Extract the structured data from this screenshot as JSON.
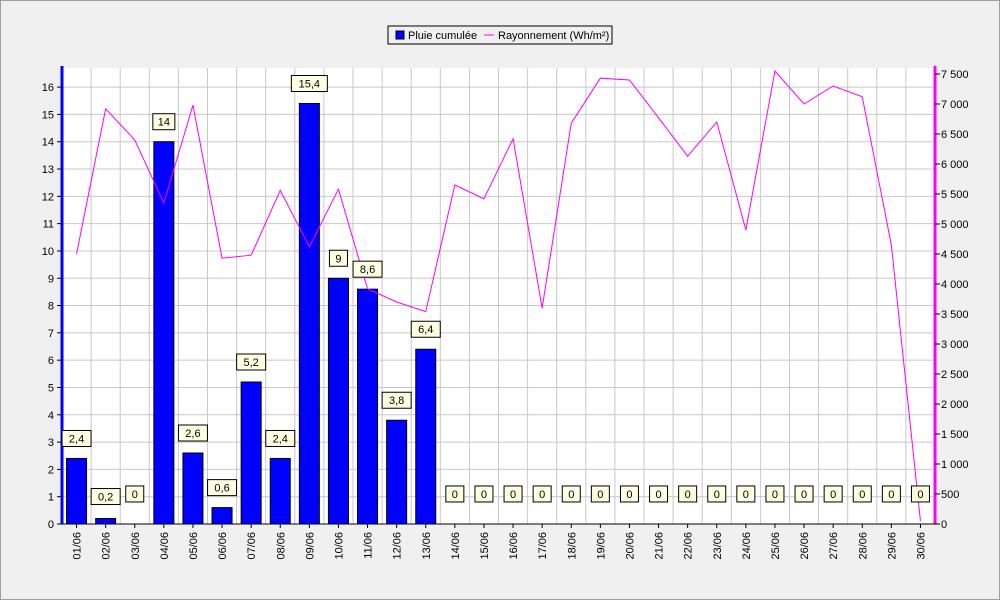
{
  "chart_data": {
    "type": "bar",
    "title": "",
    "xlabel": "",
    "ylabel": "",
    "categories": [
      "01/06",
      "02/06",
      "03/06",
      "04/06",
      "05/06",
      "06/06",
      "07/06",
      "08/06",
      "09/06",
      "10/06",
      "11/06",
      "12/06",
      "13/06",
      "14/06",
      "15/06",
      "16/06",
      "17/06",
      "18/06",
      "19/06",
      "20/06",
      "21/06",
      "22/06",
      "23/06",
      "24/06",
      "25/06",
      "26/06",
      "27/06",
      "28/06",
      "29/06",
      "30/06"
    ],
    "series": [
      {
        "name": "Pluie cumulée",
        "type": "bar",
        "axis": "left",
        "color": "#0000ff",
        "values": [
          2.4,
          0.2,
          0,
          14,
          2.6,
          0.6,
          5.2,
          2.4,
          15.4,
          9,
          8.6,
          3.8,
          6.4,
          0,
          0,
          0,
          0,
          0,
          0,
          0,
          0,
          0,
          0,
          0,
          0,
          0,
          0,
          0,
          0,
          0
        ],
        "labels": [
          "2,4",
          "0,2",
          "0",
          "14",
          "2,6",
          "0,6",
          "5,2",
          "2,4",
          "15,4",
          "9",
          "8,6",
          "3,8",
          "6,4",
          "0",
          "0",
          "0",
          "0",
          "0",
          "0",
          "0",
          "0",
          "0",
          "0",
          "0",
          "0",
          "0",
          "0",
          "0",
          "0",
          "0"
        ]
      },
      {
        "name": "Rayonnement (Wh/m²)",
        "type": "line",
        "axis": "right",
        "color": "#ff00ff",
        "values": [
          4500,
          6920,
          6400,
          5350,
          6980,
          4430,
          4480,
          5560,
          4620,
          5580,
          3920,
          3700,
          3540,
          5650,
          5420,
          6420,
          3600,
          6680,
          7430,
          7400,
          6770,
          6130,
          6700,
          4900,
          7550,
          7000,
          7300,
          7120,
          4650,
          50
        ]
      }
    ],
    "y_left": {
      "range": [
        0,
        16.7
      ],
      "ticks": [
        0,
        1,
        2,
        3,
        4,
        5,
        6,
        7,
        8,
        9,
        10,
        11,
        12,
        13,
        14,
        15,
        16
      ],
      "tick_labels": [
        "0",
        "1",
        "2",
        "3",
        "4",
        "5",
        "6",
        "7",
        "8",
        "9",
        "10",
        "11",
        "12",
        "13",
        "14",
        "15",
        "16"
      ]
    },
    "y_right": {
      "range": [
        0,
        7600
      ],
      "ticks": [
        0,
        500,
        1000,
        1500,
        2000,
        2500,
        3000,
        3500,
        4000,
        4500,
        5000,
        5500,
        6000,
        6500,
        7000,
        7500
      ],
      "tick_labels": [
        "0",
        "500",
        "1 000",
        "1 500",
        "2 000",
        "2 500",
        "3 000",
        "3 500",
        "4 000",
        "4 500",
        "5 000",
        "5 500",
        "6 000",
        "6 500",
        "7 000",
        "7 500"
      ]
    },
    "grid": true,
    "legend_position": "top-center",
    "colors": {
      "plot_bg": "#ffffff",
      "grid": "#c8c8c8",
      "left_axis": "#0000ff",
      "right_axis": "#ff00ff",
      "label_bg": "#ffffe1"
    }
  }
}
